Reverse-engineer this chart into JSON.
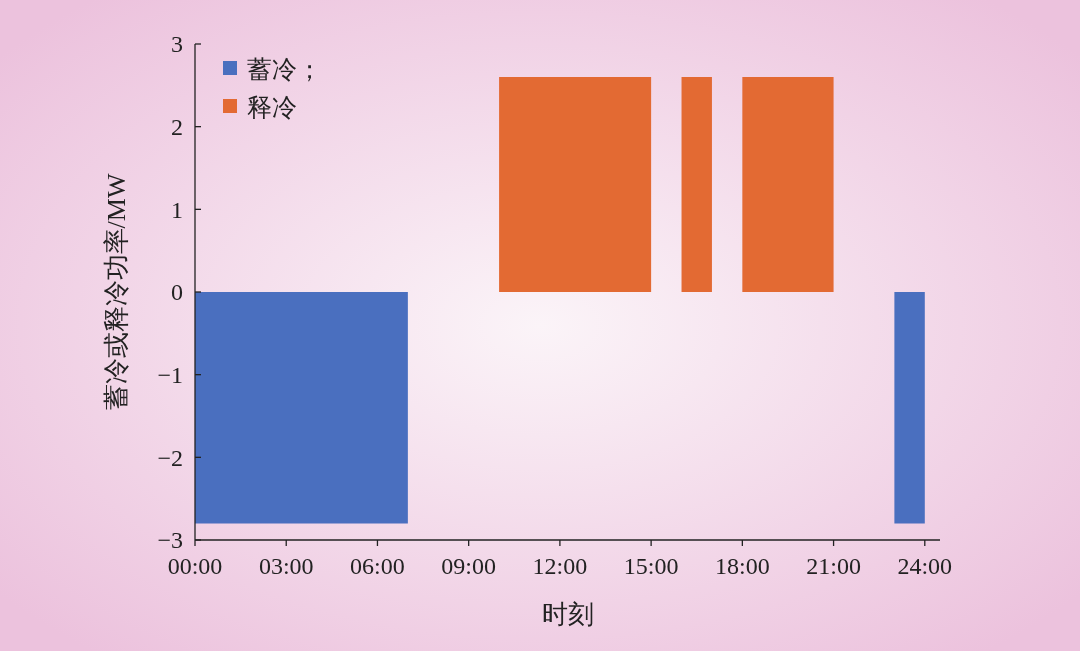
{
  "chart_data": {
    "type": "area",
    "xlabel": "时刻",
    "ylabel": "蓄冷或释冷功率/MW",
    "series": [
      {
        "name": "蓄冷；",
        "color": "#4a6fbf",
        "x": [
          0,
          7,
          7,
          23,
          23,
          24
        ],
        "values": [
          -2.8,
          -2.8,
          0,
          0,
          -2.8,
          -2.8
        ]
      },
      {
        "name": "释冷",
        "color": "#e36a33",
        "x": [
          10,
          15,
          15,
          16,
          16,
          17,
          17,
          18,
          18,
          21
        ],
        "values": [
          2.6,
          2.6,
          0,
          0,
          2.6,
          2.6,
          0,
          0,
          2.6,
          2.6
        ]
      }
    ],
    "xlim": [
      0,
      24.5
    ],
    "xticks": [
      {
        "value": 0,
        "label": "00:00"
      },
      {
        "value": 3,
        "label": "03:00"
      },
      {
        "value": 6,
        "label": "06:00"
      },
      {
        "value": 9,
        "label": "09:00"
      },
      {
        "value": 12,
        "label": "12:00"
      },
      {
        "value": 15,
        "label": "15:00"
      },
      {
        "value": 18,
        "label": "18:00"
      },
      {
        "value": 21,
        "label": "21:00"
      },
      {
        "value": 24,
        "label": "24:00"
      }
    ],
    "ylim": [
      -3,
      3
    ],
    "yticks": [
      {
        "value": -3,
        "label": "−3"
      },
      {
        "value": -2,
        "label": "−2"
      },
      {
        "value": -1,
        "label": "−1"
      },
      0,
      1,
      2,
      3
    ],
    "legend": "top left",
    "grid": false
  }
}
